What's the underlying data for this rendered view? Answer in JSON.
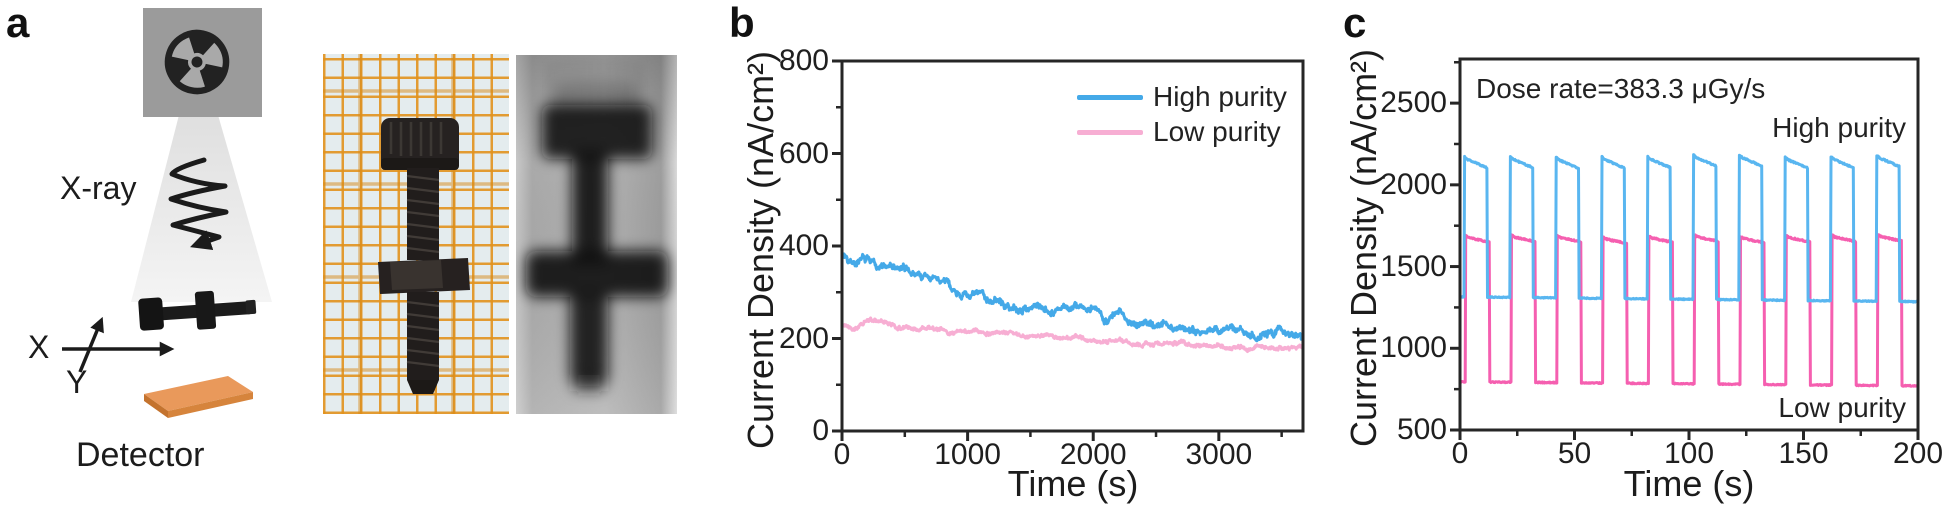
{
  "figure": {
    "bg": "#ffffff",
    "text_color": "#1f1f1f",
    "axis_color": "#262626"
  },
  "panel_a": {
    "label": "a",
    "xray_label": "X-ray",
    "detector_label": "Detector",
    "axis_x_label": "X",
    "axis_y_label": "Y",
    "colors": {
      "source_box": "#9b9b9b",
      "trefoil_dark": "#222222",
      "trefoil_disk": "#a9a9a9",
      "beam_top": "#dfdfdf",
      "beam_bottom": "#f4f4f4",
      "sample": "#1b1b1b",
      "detector_top": "#e9995b",
      "detector_front": "#d6843c",
      "detector_side": "#c4732e",
      "photo_paper": "#e4ecee",
      "photo_grid": "#e2921d",
      "screw_dark": "#262221",
      "radiograph_gray": "#b0b0b0"
    }
  },
  "panel_b": {
    "label": "b"
  },
  "panel_c": {
    "label": "c"
  },
  "chart_data": [
    {
      "id": "b",
      "type": "line",
      "title": "",
      "xlabel": "Time (s)",
      "ylabel": "Current Density (nA/cm²)",
      "xlim": [
        0,
        3670
      ],
      "ylim": [
        0,
        800
      ],
      "xticks": [
        0,
        1000,
        2000,
        3000
      ],
      "yticks": [
        0,
        200,
        400,
        600,
        800
      ],
      "x_minor_step": 500,
      "y_minor_step": 100,
      "grid": false,
      "legend_position": "top-right",
      "legend": [
        "High purity",
        "Low purity"
      ],
      "series": [
        {
          "name": "High purity",
          "color": "#44a9e8",
          "seed": 7,
          "noise": 6,
          "x_step": 100,
          "y": [
            382,
            372,
            366,
            358,
            352,
            344,
            338,
            331,
            322,
            305,
            296,
            291,
            286,
            271,
            259,
            268,
            272,
            263,
            262,
            268,
            256,
            248,
            252,
            241,
            236,
            231,
            228,
            223,
            220,
            222,
            218,
            216,
            218,
            213,
            210,
            217,
            212,
            208
          ]
        },
        {
          "name": "Low purity",
          "color": "#f7aed3",
          "seed": 13,
          "noise": 3,
          "x_step": 100,
          "y": [
            233,
            230,
            241,
            236,
            226,
            222,
            220,
            222,
            218,
            215,
            215,
            212,
            213,
            208,
            205,
            205,
            202,
            200,
            202,
            200,
            198,
            195,
            198,
            192,
            190,
            192,
            190,
            188,
            185,
            183,
            185,
            182,
            185,
            182,
            180,
            178,
            176,
            175
          ]
        }
      ]
    },
    {
      "id": "c",
      "type": "line",
      "title": "",
      "annotation": "Dose rate=383.3 μGy/s",
      "xlabel": "Time (s)",
      "ylabel": "Current Density (nA/cm²)",
      "xlim": [
        0,
        200
      ],
      "ylim": [
        500,
        2770
      ],
      "xticks": [
        0,
        50,
        100,
        150,
        200
      ],
      "yticks": [
        500,
        1000,
        1500,
        2000,
        2500
      ],
      "x_minor_step": 25,
      "y_minor_step": 250,
      "grid": false,
      "series": [
        {
          "name": "High purity",
          "color": "#59b6f0",
          "seed": 21,
          "square": {
            "period": 20,
            "t_on": 2,
            "t_off": 12,
            "pulses": 10,
            "high_start": 2165,
            "high_end": 2105,
            "low_start": 1315,
            "low_end": 1285,
            "pulse_jitter": 12
          }
        },
        {
          "name": "Low purity",
          "color": "#f55fb0",
          "seed": 33,
          "square": {
            "period": 20,
            "t_on": 2.5,
            "t_off": 13,
            "pulses": 10,
            "high_start": 1680,
            "high_end": 1648,
            "low_start": 795,
            "low_end": 770,
            "pulse_jitter": 8
          }
        }
      ]
    }
  ]
}
